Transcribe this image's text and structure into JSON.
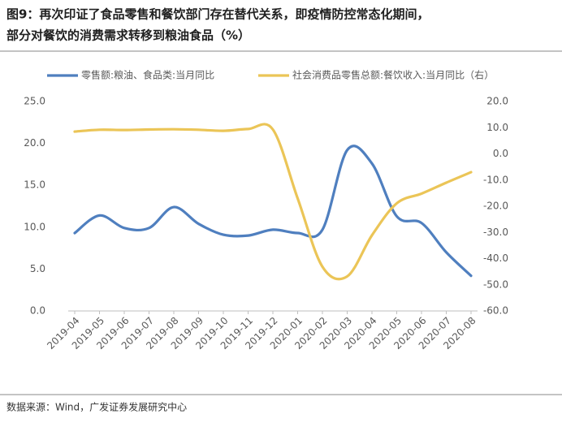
{
  "chart_data": {
    "type": "line",
    "title": [
      "图9：再次印证了食品零售和餐饮部门存在替代关系，即疫情防控常态化期间，",
      "部分对餐饮的消费需求转移到粮油食品（%）"
    ],
    "categories": [
      "2019-04",
      "2019-05",
      "2019-06",
      "2019-07",
      "2019-08",
      "2019-09",
      "2019-10",
      "2019-11",
      "2019-12",
      "2020-01",
      "2020-02",
      "2020-03",
      "2020-04",
      "2020-05",
      "2020-06",
      "2020-07",
      "2020-08"
    ],
    "series": [
      {
        "name": "零售额:粮油、食品类:当月同比",
        "color": "#4f7fbf",
        "values": [
          9.3,
          11.4,
          9.9,
          9.9,
          12.4,
          10.4,
          9.1,
          9.0,
          9.7,
          9.3,
          9.7,
          19.2,
          17.6,
          11.3,
          10.5,
          7.0,
          4.2
        ]
      },
      {
        "name": "社会消费品零售总额:餐饮收入:当月同比（右）",
        "color": "#ebc557",
        "axis": "y2",
        "values": [
          8.5,
          9.2,
          9.1,
          9.3,
          9.4,
          9.2,
          8.8,
          9.5,
          9.3,
          -17.0,
          -43.1,
          -46.8,
          -31.1,
          -18.9,
          -15.2,
          -11.0,
          -7.0
        ]
      }
    ],
    "ylim": [
      0,
      25
    ],
    "yticks": [
      {
        "value": 0,
        "label": "0.0"
      },
      {
        "value": 5,
        "label": "5.0"
      },
      {
        "value": 10,
        "label": "10.0"
      },
      {
        "value": 15,
        "label": "15.0"
      },
      {
        "value": 20,
        "label": "20.0"
      },
      {
        "value": 25,
        "label": "25.0"
      }
    ],
    "y2lim": [
      -60,
      20
    ],
    "y2ticks": [
      {
        "value": -60,
        "label": "-60.0"
      },
      {
        "value": -50,
        "label": "-50.0"
      },
      {
        "value": -40,
        "label": "-40.0"
      },
      {
        "value": -30,
        "label": "-30.0"
      },
      {
        "value": -20,
        "label": "-20.0"
      },
      {
        "value": -10,
        "label": "-10.0"
      },
      {
        "value": 0,
        "label": "0.0"
      },
      {
        "value": 10,
        "label": "10.0"
      },
      {
        "value": 20,
        "label": "20.0"
      }
    ],
    "legend": "top",
    "source": "数据来源：Wind，广发证券发展研究中心"
  }
}
